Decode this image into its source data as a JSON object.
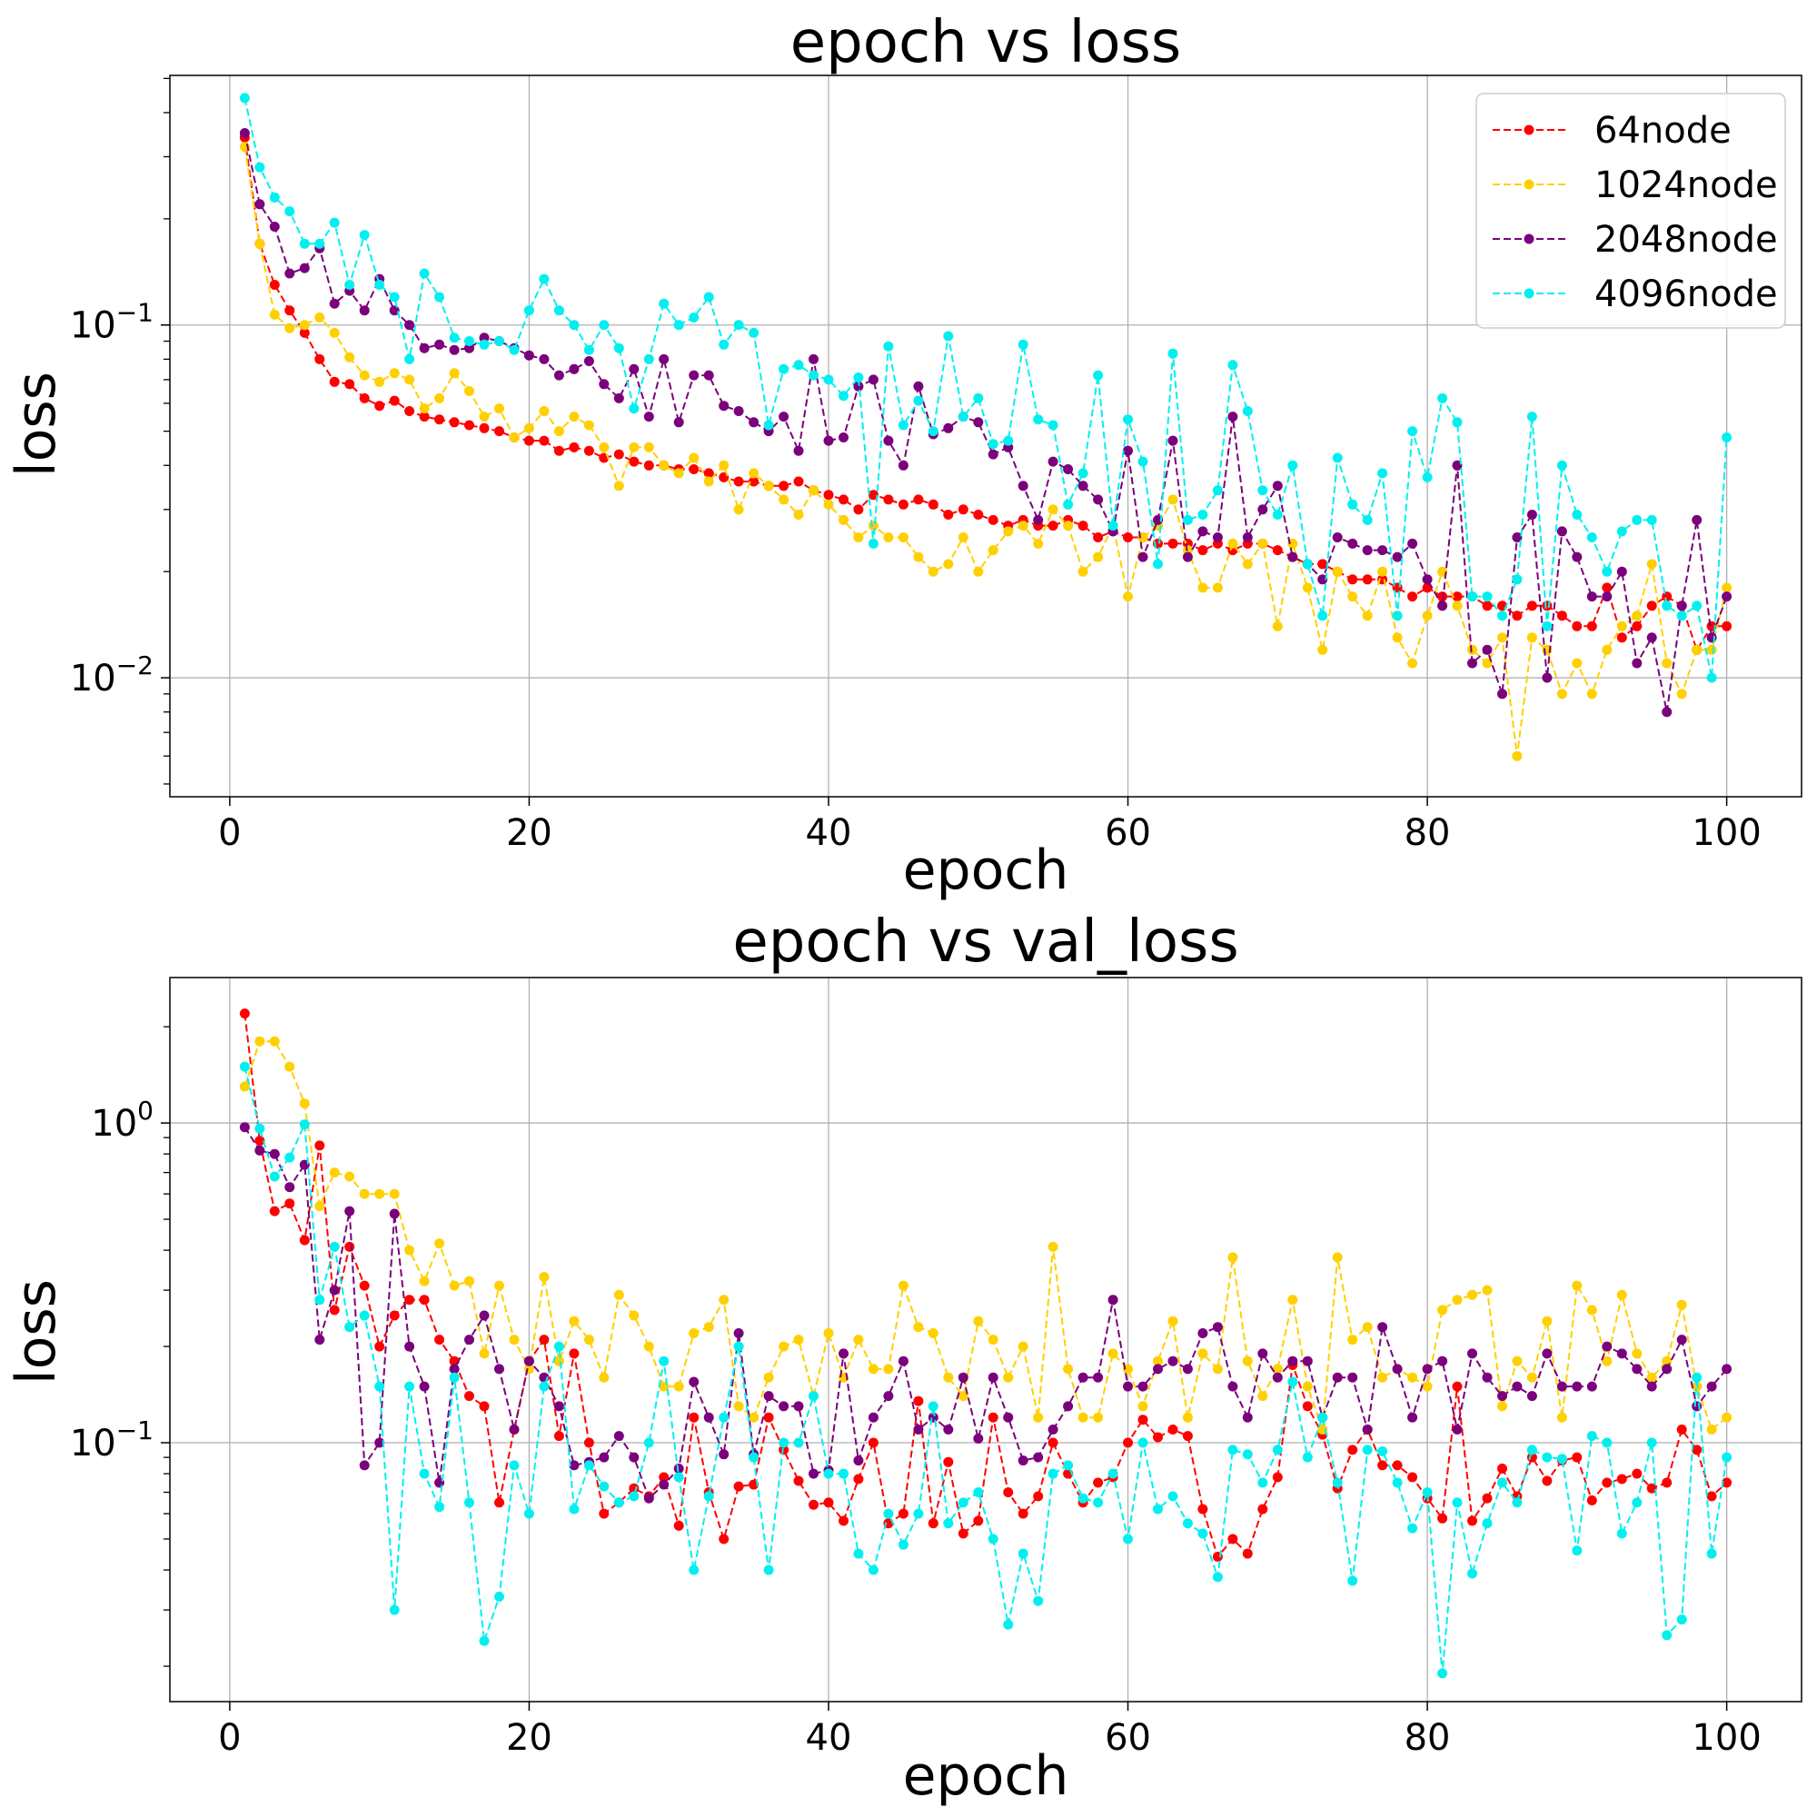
{
  "chart_data": [
    {
      "type": "line",
      "title": "epoch vs loss",
      "xlabel": "epoch",
      "ylabel": "loss",
      "yscale": "log",
      "xlim": [
        -4,
        105
      ],
      "ylim": [
        0.0046,
        0.51
      ],
      "xticks": [
        0,
        20,
        40,
        60,
        80,
        100
      ],
      "yticks": [
        {
          "value": 0.1,
          "label": "10",
          "exp": "−1"
        },
        {
          "value": 0.01,
          "label": "10",
          "exp": "−2"
        }
      ],
      "grid": true,
      "legend": "upper right",
      "x": [
        1,
        2,
        3,
        4,
        5,
        6,
        7,
        8,
        9,
        10,
        11,
        12,
        13,
        14,
        15,
        16,
        17,
        18,
        19,
        20,
        21,
        22,
        23,
        24,
        25,
        26,
        27,
        28,
        29,
        30,
        31,
        32,
        33,
        34,
        35,
        36,
        37,
        38,
        39,
        40,
        41,
        42,
        43,
        44,
        45,
        46,
        47,
        48,
        49,
        50,
        51,
        52,
        53,
        54,
        55,
        56,
        57,
        58,
        59,
        60,
        61,
        62,
        63,
        64,
        65,
        66,
        67,
        68,
        69,
        70,
        71,
        72,
        73,
        74,
        75,
        76,
        77,
        78,
        79,
        80,
        81,
        82,
        83,
        84,
        85,
        86,
        87,
        88,
        89,
        90,
        91,
        92,
        93,
        94,
        95,
        96,
        97,
        98,
        99,
        100
      ],
      "series": [
        {
          "name": "64node",
          "color": "#ff0000",
          "values": [
            0.34,
            0.17,
            0.13,
            0.11,
            0.095,
            0.08,
            0.069,
            0.068,
            0.062,
            0.059,
            0.061,
            0.057,
            0.055,
            0.054,
            0.053,
            0.052,
            0.051,
            0.05,
            0.048,
            0.047,
            0.047,
            0.044,
            0.045,
            0.044,
            0.042,
            0.043,
            0.041,
            0.04,
            0.04,
            0.039,
            0.039,
            0.038,
            0.037,
            0.036,
            0.036,
            0.035,
            0.035,
            0.036,
            0.034,
            0.033,
            0.032,
            0.03,
            0.033,
            0.032,
            0.031,
            0.032,
            0.031,
            0.029,
            0.03,
            0.029,
            0.028,
            0.027,
            0.028,
            0.027,
            0.027,
            0.028,
            0.027,
            0.025,
            0.026,
            0.025,
            0.025,
            0.024,
            0.024,
            0.024,
            0.023,
            0.024,
            0.023,
            0.024,
            0.024,
            0.023,
            0.022,
            0.021,
            0.021,
            0.02,
            0.019,
            0.019,
            0.019,
            0.018,
            0.017,
            0.018,
            0.017,
            0.017,
            0.017,
            0.016,
            0.016,
            0.015,
            0.016,
            0.016,
            0.015,
            0.014,
            0.014,
            0.018,
            0.013,
            0.014,
            0.016,
            0.017,
            0.016,
            0.012,
            0.014,
            0.014
          ]
        },
        {
          "name": "1024node",
          "color": "#ffd000",
          "values": [
            0.32,
            0.17,
            0.107,
            0.098,
            0.1,
            0.105,
            0.095,
            0.081,
            0.072,
            0.069,
            0.073,
            0.07,
            0.058,
            0.062,
            0.073,
            0.065,
            0.055,
            0.058,
            0.048,
            0.051,
            0.057,
            0.05,
            0.055,
            0.052,
            0.045,
            0.035,
            0.045,
            0.045,
            0.04,
            0.038,
            0.042,
            0.036,
            0.04,
            0.03,
            0.038,
            0.035,
            0.032,
            0.029,
            0.034,
            0.031,
            0.028,
            0.025,
            0.027,
            0.025,
            0.025,
            0.022,
            0.02,
            0.021,
            0.025,
            0.02,
            0.023,
            0.026,
            0.027,
            0.024,
            0.03,
            0.027,
            0.02,
            0.022,
            0.027,
            0.017,
            0.025,
            0.027,
            0.032,
            0.023,
            0.018,
            0.018,
            0.024,
            0.021,
            0.024,
            0.014,
            0.024,
            0.018,
            0.012,
            0.02,
            0.017,
            0.015,
            0.02,
            0.013,
            0.011,
            0.015,
            0.02,
            0.016,
            0.012,
            0.011,
            0.013,
            0.006,
            0.013,
            0.012,
            0.009,
            0.011,
            0.009,
            0.012,
            0.014,
            0.015,
            0.021,
            0.011,
            0.009,
            0.012,
            0.012,
            0.018
          ]
        },
        {
          "name": "2048node",
          "color": "#7b007b",
          "values": [
            0.35,
            0.22,
            0.19,
            0.14,
            0.145,
            0.165,
            0.115,
            0.125,
            0.11,
            0.135,
            0.11,
            0.1,
            0.086,
            0.088,
            0.085,
            0.086,
            0.092,
            0.09,
            0.086,
            0.082,
            0.08,
            0.072,
            0.075,
            0.079,
            0.068,
            0.062,
            0.075,
            0.055,
            0.08,
            0.053,
            0.072,
            0.072,
            0.059,
            0.057,
            0.053,
            0.05,
            0.055,
            0.044,
            0.08,
            0.047,
            0.048,
            0.067,
            0.07,
            0.047,
            0.04,
            0.067,
            0.049,
            0.051,
            0.055,
            0.053,
            0.043,
            0.045,
            0.035,
            0.028,
            0.041,
            0.039,
            0.035,
            0.032,
            0.026,
            0.044,
            0.022,
            0.028,
            0.047,
            0.022,
            0.026,
            0.025,
            0.055,
            0.025,
            0.03,
            0.035,
            0.022,
            0.021,
            0.019,
            0.025,
            0.024,
            0.023,
            0.023,
            0.022,
            0.024,
            0.019,
            0.016,
            0.04,
            0.011,
            0.012,
            0.009,
            0.025,
            0.029,
            0.01,
            0.026,
            0.022,
            0.017,
            0.017,
            0.02,
            0.011,
            0.013,
            0.008,
            0.016,
            0.028,
            0.013,
            0.017
          ]
        },
        {
          "name": "4096node",
          "color": "#00f0f0",
          "values": [
            0.44,
            0.28,
            0.23,
            0.21,
            0.17,
            0.17,
            0.195,
            0.13,
            0.18,
            0.13,
            0.12,
            0.08,
            0.14,
            0.12,
            0.092,
            0.09,
            0.088,
            0.09,
            0.085,
            0.11,
            0.135,
            0.11,
            0.1,
            0.085,
            0.1,
            0.086,
            0.058,
            0.08,
            0.115,
            0.1,
            0.105,
            0.12,
            0.088,
            0.1,
            0.095,
            0.052,
            0.075,
            0.077,
            0.072,
            0.07,
            0.063,
            0.071,
            0.024,
            0.087,
            0.052,
            0.061,
            0.05,
            0.093,
            0.055,
            0.062,
            0.046,
            0.047,
            0.088,
            0.054,
            0.052,
            0.031,
            0.038,
            0.072,
            0.027,
            0.054,
            0.041,
            0.021,
            0.083,
            0.028,
            0.029,
            0.034,
            0.077,
            0.057,
            0.034,
            0.029,
            0.04,
            0.021,
            0.015,
            0.042,
            0.031,
            0.028,
            0.038,
            0.015,
            0.05,
            0.037,
            0.062,
            0.053,
            0.017,
            0.017,
            0.015,
            0.019,
            0.055,
            0.014,
            0.04,
            0.029,
            0.025,
            0.02,
            0.026,
            0.028,
            0.028,
            0.016,
            0.015,
            0.016,
            0.01,
            0.048
          ]
        }
      ]
    },
    {
      "type": "line",
      "title": "epoch vs val_loss",
      "xlabel": "epoch",
      "ylabel": "loss",
      "yscale": "log",
      "xlim": [
        -4,
        105
      ],
      "ylim": [
        0.0155,
        2.85
      ],
      "xticks": [
        0,
        20,
        40,
        60,
        80,
        100
      ],
      "yticks": [
        {
          "value": 1,
          "label": "10",
          "exp": "0"
        },
        {
          "value": 0.1,
          "label": "10",
          "exp": "−1"
        }
      ],
      "grid": true,
      "x": [
        1,
        2,
        3,
        4,
        5,
        6,
        7,
        8,
        9,
        10,
        11,
        12,
        13,
        14,
        15,
        16,
        17,
        18,
        19,
        20,
        21,
        22,
        23,
        24,
        25,
        26,
        27,
        28,
        29,
        30,
        31,
        32,
        33,
        34,
        35,
        36,
        37,
        38,
        39,
        40,
        41,
        42,
        43,
        44,
        45,
        46,
        47,
        48,
        49,
        50,
        51,
        52,
        53,
        54,
        55,
        56,
        57,
        58,
        59,
        60,
        61,
        62,
        63,
        64,
        65,
        66,
        67,
        68,
        69,
        70,
        71,
        72,
        73,
        74,
        75,
        76,
        77,
        78,
        79,
        80,
        81,
        82,
        83,
        84,
        85,
        86,
        87,
        88,
        89,
        90,
        91,
        92,
        93,
        94,
        95,
        96,
        97,
        98,
        99,
        100
      ],
      "series": [
        {
          "name": "64node",
          "color": "#ff0000",
          "values": [
            2.2,
            0.88,
            0.53,
            0.56,
            0.43,
            0.85,
            0.26,
            0.41,
            0.31,
            0.2,
            0.25,
            0.28,
            0.28,
            0.21,
            0.18,
            0.14,
            0.13,
            0.065,
            0.11,
            0.18,
            0.21,
            0.105,
            0.19,
            0.1,
            0.06,
            0.065,
            0.072,
            0.068,
            0.078,
            0.055,
            0.12,
            0.07,
            0.05,
            0.073,
            0.074,
            0.12,
            0.095,
            0.076,
            0.064,
            0.065,
            0.057,
            0.077,
            0.1,
            0.056,
            0.06,
            0.135,
            0.056,
            0.087,
            0.052,
            0.057,
            0.12,
            0.07,
            0.06,
            0.068,
            0.1,
            0.08,
            0.065,
            0.075,
            0.078,
            0.1,
            0.118,
            0.104,
            0.11,
            0.105,
            0.062,
            0.044,
            0.05,
            0.045,
            0.062,
            0.078,
            0.175,
            0.13,
            0.106,
            0.072,
            0.095,
            0.11,
            0.085,
            0.085,
            0.078,
            0.067,
            0.058,
            0.15,
            0.057,
            0.067,
            0.083,
            0.068,
            0.09,
            0.076,
            0.088,
            0.09,
            0.066,
            0.075,
            0.077,
            0.08,
            0.072,
            0.075,
            0.11,
            0.095,
            0.068,
            0.075
          ]
        },
        {
          "name": "1024node",
          "color": "#ffd000",
          "values": [
            1.3,
            1.8,
            1.8,
            1.5,
            1.15,
            0.55,
            0.7,
            0.68,
            0.6,
            0.6,
            0.6,
            0.4,
            0.32,
            0.42,
            0.31,
            0.32,
            0.19,
            0.31,
            0.21,
            0.17,
            0.33,
            0.18,
            0.24,
            0.21,
            0.16,
            0.29,
            0.25,
            0.2,
            0.15,
            0.15,
            0.22,
            0.23,
            0.28,
            0.13,
            0.12,
            0.16,
            0.2,
            0.21,
            0.14,
            0.22,
            0.16,
            0.21,
            0.17,
            0.17,
            0.31,
            0.23,
            0.22,
            0.16,
            0.14,
            0.24,
            0.21,
            0.16,
            0.2,
            0.12,
            0.41,
            0.17,
            0.12,
            0.12,
            0.19,
            0.17,
            0.13,
            0.18,
            0.24,
            0.12,
            0.19,
            0.17,
            0.38,
            0.18,
            0.14,
            0.17,
            0.28,
            0.15,
            0.11,
            0.38,
            0.21,
            0.23,
            0.16,
            0.17,
            0.16,
            0.15,
            0.26,
            0.28,
            0.29,
            0.3,
            0.13,
            0.18,
            0.16,
            0.24,
            0.12,
            0.31,
            0.26,
            0.18,
            0.29,
            0.19,
            0.16,
            0.18,
            0.27,
            0.15,
            0.11,
            0.12
          ]
        },
        {
          "name": "2048node",
          "color": "#7b007b",
          "values": [
            0.97,
            0.82,
            0.8,
            0.63,
            0.74,
            0.21,
            0.3,
            0.53,
            0.085,
            0.1,
            0.52,
            0.2,
            0.15,
            0.075,
            0.17,
            0.21,
            0.25,
            0.17,
            0.11,
            0.18,
            0.16,
            0.13,
            0.085,
            0.087,
            0.09,
            0.105,
            0.09,
            0.067,
            0.074,
            0.083,
            0.155,
            0.12,
            0.092,
            0.22,
            0.092,
            0.14,
            0.13,
            0.13,
            0.08,
            0.082,
            0.19,
            0.088,
            0.12,
            0.14,
            0.18,
            0.11,
            0.12,
            0.11,
            0.16,
            0.103,
            0.16,
            0.12,
            0.088,
            0.09,
            0.11,
            0.13,
            0.16,
            0.16,
            0.28,
            0.15,
            0.15,
            0.17,
            0.18,
            0.17,
            0.22,
            0.23,
            0.15,
            0.12,
            0.19,
            0.16,
            0.18,
            0.18,
            0.12,
            0.16,
            0.16,
            0.11,
            0.23,
            0.17,
            0.12,
            0.17,
            0.18,
            0.11,
            0.19,
            0.16,
            0.14,
            0.15,
            0.14,
            0.19,
            0.15,
            0.15,
            0.15,
            0.2,
            0.19,
            0.17,
            0.15,
            0.17,
            0.21,
            0.13,
            0.15,
            0.17
          ]
        },
        {
          "name": "4096node",
          "color": "#00f0f0",
          "values": [
            1.5,
            0.96,
            0.68,
            0.78,
            0.99,
            0.28,
            0.41,
            0.23,
            0.25,
            0.15,
            0.03,
            0.15,
            0.08,
            0.063,
            0.16,
            0.065,
            0.024,
            0.033,
            0.085,
            0.06,
            0.15,
            0.2,
            0.062,
            0.085,
            0.073,
            0.065,
            0.068,
            0.1,
            0.18,
            0.078,
            0.04,
            0.068,
            0.12,
            0.2,
            0.09,
            0.04,
            0.1,
            0.1,
            0.14,
            0.08,
            0.08,
            0.045,
            0.04,
            0.06,
            0.048,
            0.06,
            0.13,
            0.056,
            0.065,
            0.07,
            0.05,
            0.027,
            0.045,
            0.032,
            0.08,
            0.085,
            0.067,
            0.065,
            0.08,
            0.05,
            0.1,
            0.062,
            0.068,
            0.056,
            0.052,
            0.038,
            0.095,
            0.092,
            0.075,
            0.095,
            0.155,
            0.09,
            0.12,
            0.075,
            0.037,
            0.095,
            0.094,
            0.075,
            0.054,
            0.07,
            0.019,
            0.065,
            0.039,
            0.056,
            0.075,
            0.065,
            0.095,
            0.09,
            0.089,
            0.046,
            0.105,
            0.1,
            0.052,
            0.065,
            0.1,
            0.025,
            0.028,
            0.16,
            0.045,
            0.09
          ]
        }
      ]
    }
  ]
}
